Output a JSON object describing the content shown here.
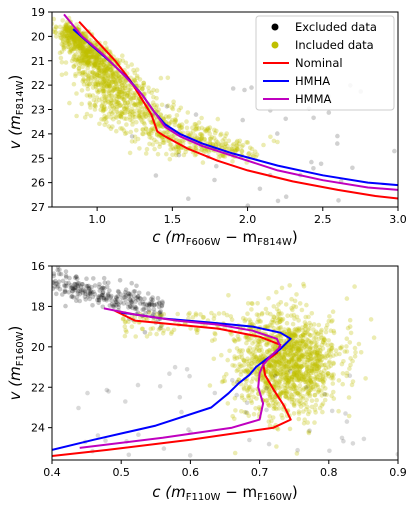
{
  "chart_data": [
    {
      "type": "scatter",
      "panel": "top",
      "xlabel_main": "c (m",
      "xlabel_sub1": "F606W",
      "xlabel_mid": " − m",
      "xlabel_sub2": "F814W",
      "xlabel_end": ")",
      "ylabel_main": "v (m",
      "ylabel_sub": "F814W",
      "ylabel_end": ")",
      "xlim": [
        0.7,
        3.0
      ],
      "ylim": [
        27,
        19
      ],
      "xticks": [
        "1.0",
        "1.5",
        "2.0",
        "2.5",
        "3.0"
      ],
      "xtick_values": [
        1.0,
        1.5,
        2.0,
        2.5,
        3.0
      ],
      "yticks": [
        "19",
        "20",
        "21",
        "22",
        "23",
        "24",
        "25",
        "26",
        "27"
      ],
      "ytick_values": [
        19,
        20,
        21,
        22,
        23,
        24,
        25,
        26,
        27
      ],
      "legend": {
        "position": "top-right",
        "entries": [
          {
            "label": "Excluded data",
            "kind": "dot",
            "color": "#000000"
          },
          {
            "label": "Included data",
            "kind": "dot",
            "color": "#bfbf00"
          },
          {
            "label": "Nominal",
            "kind": "line",
            "color": "#ff0000"
          },
          {
            "label": "HMHA",
            "kind": "line",
            "color": "#0000ff"
          },
          {
            "label": "HMMA",
            "kind": "line",
            "color": "#bf00bf"
          }
        ]
      },
      "series": [
        {
          "name": "Nominal",
          "color": "#ff0000",
          "x": [
            0.88,
            1.0,
            1.12,
            1.22,
            1.3,
            1.36,
            1.4,
            1.45,
            1.6,
            1.8,
            2.0,
            2.3,
            2.6,
            2.85,
            3.0
          ],
          "y": [
            19.4,
            20.2,
            21.0,
            21.8,
            22.6,
            23.2,
            23.9,
            24.1,
            24.6,
            25.1,
            25.5,
            25.95,
            26.3,
            26.55,
            26.65
          ]
        },
        {
          "name": "HMHA",
          "color": "#0000ff",
          "x": [
            0.84,
            0.95,
            1.08,
            1.2,
            1.3,
            1.38,
            1.45,
            1.55,
            1.7,
            1.9,
            2.2,
            2.5,
            2.8,
            3.0
          ],
          "y": [
            19.7,
            20.3,
            21.0,
            21.7,
            22.4,
            23.1,
            23.6,
            24.0,
            24.4,
            24.8,
            25.3,
            25.7,
            26.0,
            26.1
          ]
        },
        {
          "name": "HMMA",
          "color": "#bf00bf",
          "x": [
            0.78,
            0.9,
            1.05,
            1.18,
            1.3,
            1.38,
            1.45,
            1.55,
            1.7,
            1.9,
            2.2,
            2.5,
            2.8,
            3.0
          ],
          "y": [
            19.1,
            20.0,
            20.8,
            21.6,
            22.4,
            23.1,
            23.7,
            24.1,
            24.5,
            24.9,
            25.5,
            25.9,
            26.2,
            26.3
          ]
        }
      ]
    },
    {
      "type": "scatter",
      "panel": "bottom",
      "xlabel_main": "c (m",
      "xlabel_sub1": "F110W",
      "xlabel_mid": " − m",
      "xlabel_sub2": "F160W",
      "xlabel_end": ")",
      "ylabel_main": "v (m",
      "ylabel_sub": "F160W",
      "ylabel_end": ")",
      "xlim": [
        0.4,
        0.9
      ],
      "ylim": [
        25.6,
        16
      ],
      "xticks": [
        "0.4",
        "0.5",
        "0.6",
        "0.7",
        "0.8",
        "0.9"
      ],
      "xtick_values": [
        0.4,
        0.5,
        0.6,
        0.7,
        0.8,
        0.9
      ],
      "yticks": [
        "16",
        "18",
        "20",
        "22",
        "24"
      ],
      "ytick_values": [
        16,
        18,
        20,
        22,
        24
      ],
      "series": [
        {
          "name": "Nominal",
          "color": "#ff0000",
          "x": [
            0.49,
            0.52,
            0.58,
            0.64,
            0.7,
            0.73,
            0.725,
            0.705,
            0.708,
            0.72,
            0.735,
            0.745,
            0.72,
            0.6,
            0.48,
            0.4
          ],
          "y": [
            18.2,
            18.7,
            18.9,
            19.1,
            19.5,
            19.9,
            20.3,
            20.8,
            21.4,
            22.1,
            22.9,
            23.6,
            24.0,
            24.6,
            25.1,
            25.4
          ]
        },
        {
          "name": "HMHA",
          "color": "#0000ff",
          "x": [
            0.5,
            0.56,
            0.63,
            0.69,
            0.73,
            0.745,
            0.73,
            0.71,
            0.695,
            0.685,
            0.67,
            0.655,
            0.63,
            0.55,
            0.46,
            0.4
          ],
          "y": [
            18.3,
            18.6,
            18.8,
            19.0,
            19.3,
            19.6,
            20.1,
            20.6,
            21.0,
            21.4,
            21.8,
            22.3,
            23.0,
            23.9,
            24.6,
            25.1
          ]
        },
        {
          "name": "HMMA",
          "color": "#bf00bf",
          "x": [
            0.475,
            0.52,
            0.58,
            0.64,
            0.69,
            0.725,
            0.73,
            0.715,
            0.705,
            0.7,
            0.698,
            0.705,
            0.7,
            0.66,
            0.56,
            0.44
          ],
          "y": [
            18.1,
            18.4,
            18.7,
            18.9,
            19.2,
            19.6,
            20.0,
            20.5,
            20.9,
            21.3,
            22.0,
            22.8,
            23.6,
            24.0,
            24.5,
            25.0
          ]
        }
      ]
    }
  ]
}
